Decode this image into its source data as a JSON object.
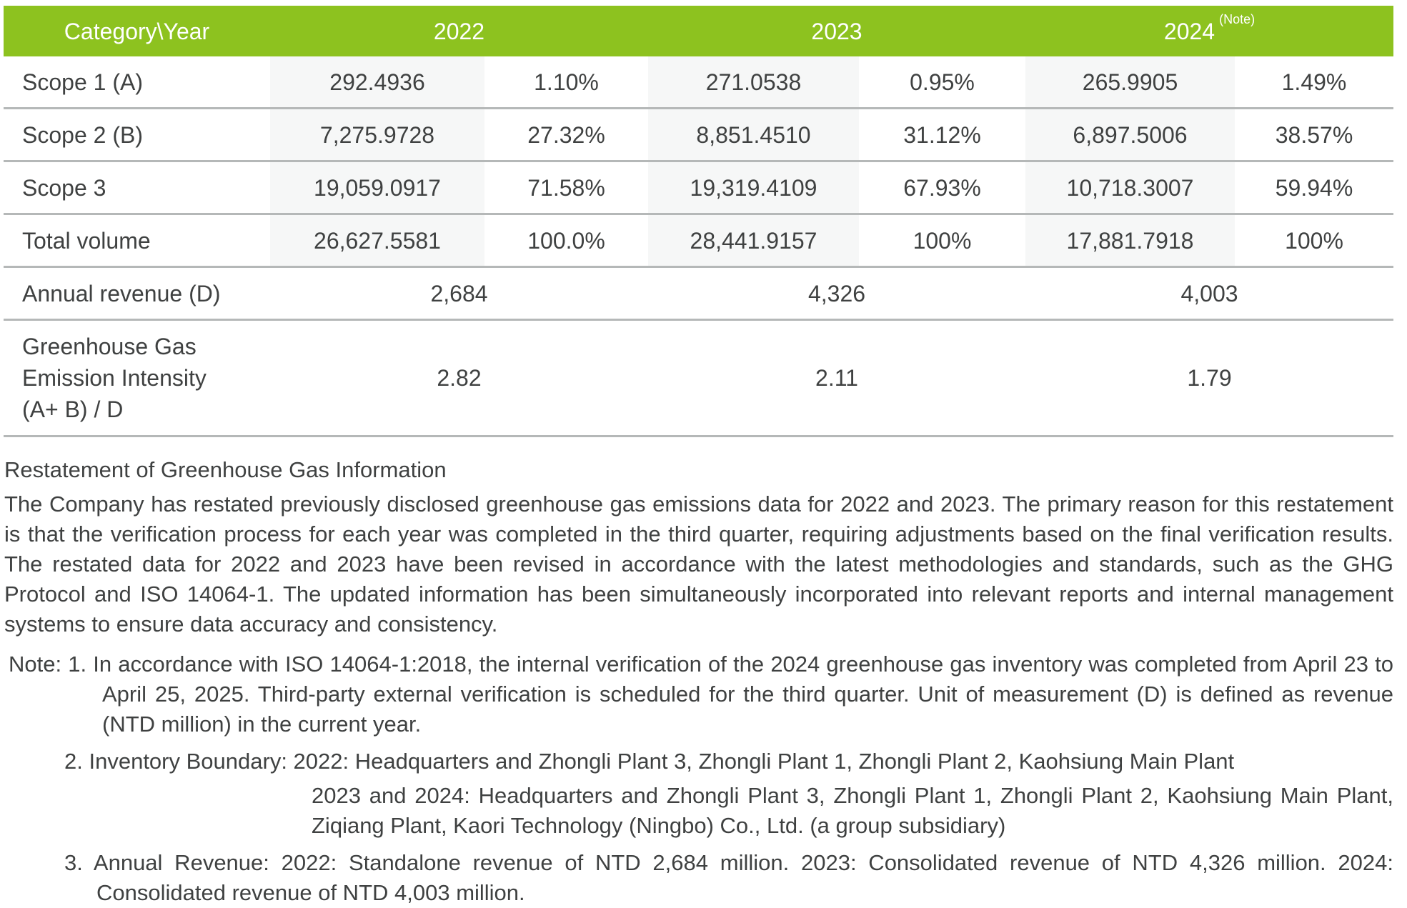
{
  "colors": {
    "header_green": "#8dc21f",
    "stripe_gray": "#f6f7f7",
    "divider_gray": "#b5b8b8",
    "text_dark": "#3f4141",
    "header_text": "#ffffff"
  },
  "table": {
    "header": {
      "category": "Category\\Year",
      "year_2022": "2022",
      "year_2023": "2023",
      "year_2024": "2024",
      "note_sup": "(Note)"
    },
    "rows": [
      {
        "label": "Scope 1 (A)",
        "cells": [
          "292.4936",
          "1.10%",
          "271.0538",
          "0.95%",
          "265.9905",
          "1.49%"
        ]
      },
      {
        "label": "Scope 2 (B)",
        "cells": [
          "7,275.9728",
          "27.32%",
          "8,851.4510",
          "31.12%",
          "6,897.5006",
          "38.57%"
        ]
      },
      {
        "label": "Scope 3",
        "cells": [
          "19,059.0917",
          "71.58%",
          "19,319.4109",
          "67.93%",
          "10,718.3007",
          "59.94%"
        ]
      },
      {
        "label": "Total volume",
        "cells": [
          "26,627.5581",
          "100.0%",
          "28,441.9157",
          "100%",
          "17,881.7918",
          "100%"
        ]
      }
    ],
    "merged_rows": [
      {
        "label": "Annual revenue (D)",
        "values": [
          "2,684",
          "4,326",
          "4,003"
        ]
      },
      {
        "label": "Greenhouse Gas\nEmission Intensity\n(A+ B) / D",
        "values": [
          "2.82",
          "2.11",
          "1.79"
        ]
      }
    ]
  },
  "restatement": {
    "heading": "Restatement of Greenhouse Gas Information",
    "body": "The Company has restated previously disclosed greenhouse gas emissions data for 2022 and 2023. The primary reason for this restatement is that the verification process for each year was completed in the third quarter, requiring adjustments based on the final verification results. The restated data for 2022 and 2023 have been revised in accordance with the latest methodologies and standards, such as the GHG Protocol and ISO 14064-1. The updated information has been simultaneously incorporated into relevant reports and internal management systems to ensure data accuracy and consistency."
  },
  "notes": {
    "label": "Note:",
    "items": [
      {
        "num": "1.",
        "text": "In accordance with ISO 14064-1:2018, the internal verification of the 2024 greenhouse gas inventory was completed from April 23 to April 25, 2025. Third-party external verification is scheduled for the third quarter. Unit of measurement (D) is defined as revenue (NTD million) in the current year."
      },
      {
        "num": "2.",
        "text": "Inventory Boundary: 2022: Headquarters and Zhongli Plant 3, Zhongli Plant 1, Zhongli Plant 2, Kaohsiung Main Plant",
        "text2": "2023 and 2024: Headquarters and Zhongli Plant 3, Zhongli Plant 1, Zhongli Plant 2, Kaohsiung Main Plant, Ziqiang Plant, Kaori Technology (Ningbo) Co., Ltd. (a group subsidiary)"
      },
      {
        "num": "3.",
        "text": "Annual Revenue: 2022: Standalone revenue of NTD 2,684 million. 2023: Consolidated revenue of NTD 4,326 million. 2024: Consolidated revenue of NTD 4,003 million."
      }
    ]
  }
}
